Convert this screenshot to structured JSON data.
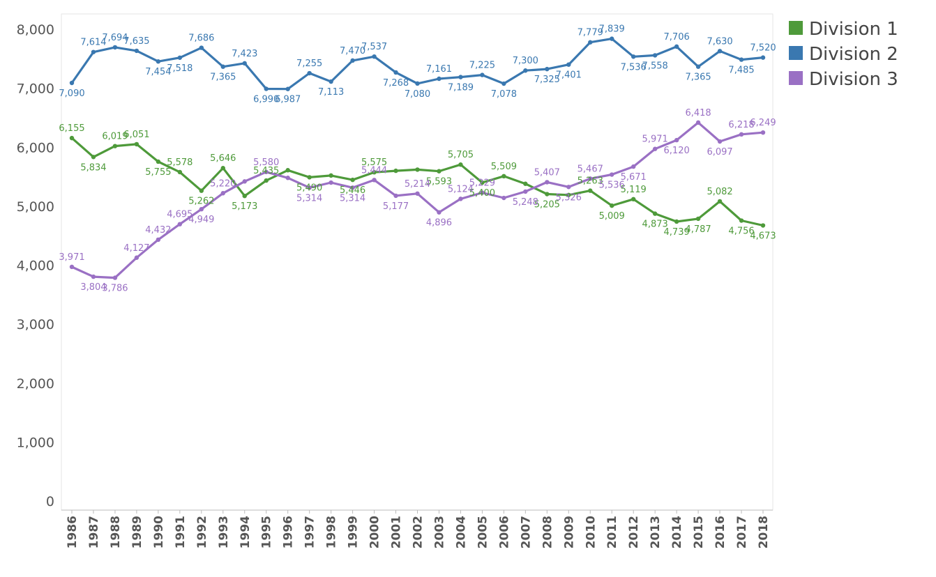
{
  "chart_data": {
    "type": "line",
    "title": "",
    "xlabel": "",
    "ylabel": "",
    "ylim": [
      0,
      8000
    ],
    "yticks": [
      0,
      1000,
      2000,
      3000,
      4000,
      5000,
      6000,
      7000,
      8000
    ],
    "ytick_labels": [
      "0",
      "1,000",
      "2,000",
      "3,000",
      "4,000",
      "5,000",
      "6,000",
      "7,000",
      "8,000"
    ],
    "x": [
      "1986",
      "1987",
      "1988",
      "1989",
      "1990",
      "1991",
      "1992",
      "1993",
      "1994",
      "1995",
      "1996",
      "1997",
      "1998",
      "1999",
      "2000",
      "2001",
      "2002",
      "2003",
      "2004",
      "2005",
      "2006",
      "2007",
      "2008",
      "2009",
      "2010",
      "2011",
      "2012",
      "2013",
      "2014",
      "2015",
      "2016",
      "2017",
      "2018"
    ],
    "grid": false,
    "legend_position": "top-right",
    "series": [
      {
        "name": "Division 1",
        "color": "#4e9a3a",
        "values": [
          6155,
          5834,
          6019,
          6051,
          5755,
          5578,
          5262,
          5646,
          5173,
          5435,
          5610,
          5490,
          5520,
          5446,
          5575,
          5600,
          5620,
          5593,
          5705,
          5400,
          5509,
          5380,
          5205,
          5190,
          5263,
          5009,
          5119,
          4873,
          4739,
          4787,
          5082,
          4756,
          4673
        ],
        "labels": [
          "6,155",
          "5,834",
          "6,019",
          "6,051",
          "5,755",
          "5,578",
          "5,262",
          "5,646",
          "5,173",
          "5,435",
          null,
          "5,490",
          null,
          "5,446",
          "5,575",
          null,
          null,
          "5,593",
          "5,705",
          "5,400",
          "5,509",
          null,
          "5,205",
          null,
          "5,263",
          "5,009",
          "5,119",
          "4,873",
          "4,739",
          "4,787",
          "5,082",
          "4,756",
          "4,673"
        ]
      },
      {
        "name": "Division 2",
        "color": "#3a78b0",
        "values": [
          7090,
          7614,
          7694,
          7635,
          7454,
          7518,
          7686,
          7365,
          7423,
          6990,
          6987,
          7255,
          7113,
          7470,
          7537,
          7268,
          7080,
          7161,
          7189,
          7225,
          7078,
          7300,
          7325,
          7401,
          7779,
          7839,
          7536,
          7558,
          7706,
          7365,
          7630,
          7485,
          7520
        ],
        "labels": [
          "7,090",
          "7,614",
          "7,694",
          "7,635",
          "7,454",
          "7,518",
          "7,686",
          "7,365",
          "7,423",
          "6,990",
          "6,987",
          "7,255",
          "7,113",
          "7,470",
          "7,537",
          "7,268",
          "7,080",
          "7,161",
          "7,189",
          "7,225",
          "7,078",
          "7,300",
          "7,325",
          "7,401",
          "7,779",
          "7,839",
          "7,536",
          "7,558",
          "7,706",
          "7,365",
          "7,630",
          "7,485",
          "7,520"
        ]
      },
      {
        "name": "Division 3",
        "color": "#9a70c4",
        "values": [
          3971,
          3804,
          3786,
          4127,
          4432,
          4695,
          4949,
          5220,
          5420,
          5580,
          5480,
          5314,
          5400,
          5314,
          5444,
          5177,
          5214,
          4896,
          5124,
          5229,
          5140,
          5248,
          5407,
          5326,
          5467,
          5536,
          5671,
          5971,
          6120,
          6418,
          6097,
          6218,
          6249
        ],
        "labels": [
          "3,971",
          "3,804",
          "3,786",
          "4,127",
          "4,432",
          "4,695",
          "4,949",
          "5,220",
          null,
          "5,580",
          null,
          "5,314",
          null,
          "5,314",
          "5,444",
          "5,177",
          "5,214",
          "4,896",
          "5,124",
          "5,229",
          null,
          "5,248",
          "5,407",
          "5,326",
          "5,467",
          "5,536",
          "5,671",
          "5,971",
          "6,120",
          "6,418",
          "6,097",
          "6,218",
          "6,249"
        ]
      }
    ]
  }
}
